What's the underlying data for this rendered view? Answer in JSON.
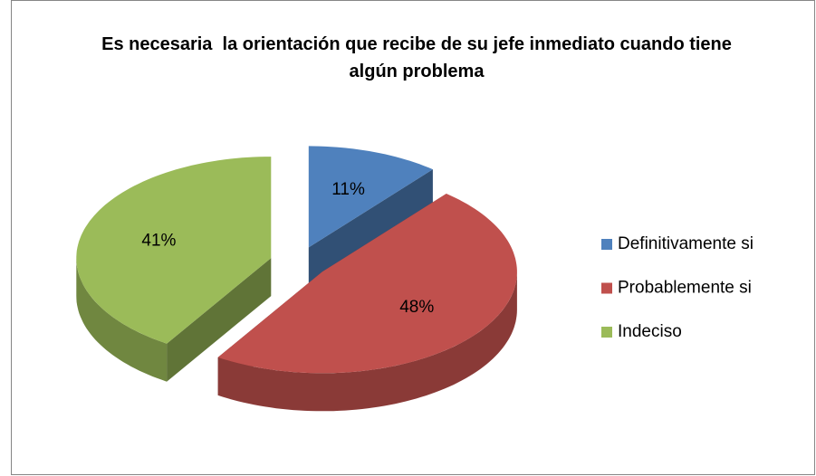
{
  "chart_data": {
    "type": "pie3d",
    "title": "Es necesaria  la orientación que recibe de su jefe inmediato cuando tiene algún problema",
    "categories": [
      "Definitivamente si",
      "Probablemente si",
      "Indeciso"
    ],
    "values": [
      11,
      48,
      41
    ],
    "value_labels": [
      "11%",
      "48%",
      "41%"
    ],
    "colors": [
      "#4f81bd",
      "#c0504d",
      "#9bbb59"
    ],
    "legend": "right"
  }
}
